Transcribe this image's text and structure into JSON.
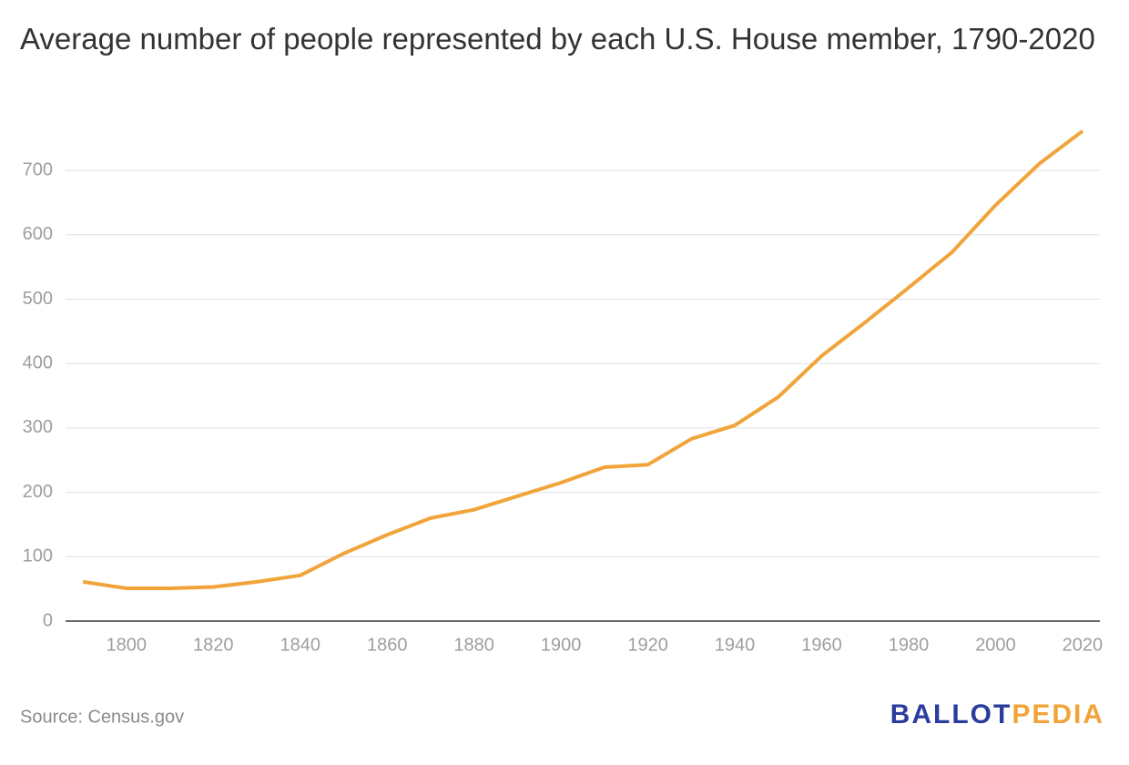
{
  "chart_data": {
    "type": "line",
    "title": "Average number of people represented by each U.S. House member, 1790-2020",
    "source": "Source: Census.gov",
    "logo": [
      "BALLOT",
      "PEDIA"
    ],
    "x": [
      1790,
      1800,
      1810,
      1820,
      1830,
      1840,
      1850,
      1860,
      1870,
      1880,
      1890,
      1900,
      1910,
      1920,
      1930,
      1940,
      1950,
      1960,
      1970,
      1980,
      1990,
      2000,
      2010,
      2020
    ],
    "series": [
      {
        "name": "Average number of people represented",
        "color": "#f0a43a",
        "values": [
          61,
          51,
          51,
          53,
          61,
          71,
          105,
          134,
          160,
          173,
          194,
          215,
          239,
          243,
          283,
          304,
          348,
          412,
          464,
          518,
          573,
          646,
          710,
          761
        ]
      }
    ],
    "xlim": [
      1786,
      2024
    ],
    "xticks": [
      1800,
      1820,
      1840,
      1860,
      1880,
      1900,
      1920,
      1940,
      1960,
      1980,
      2000,
      2020
    ],
    "ylim": [
      0,
      770
    ],
    "yticks": [
      0,
      100,
      200,
      300,
      400,
      500,
      600,
      700
    ],
    "grid": true
  }
}
